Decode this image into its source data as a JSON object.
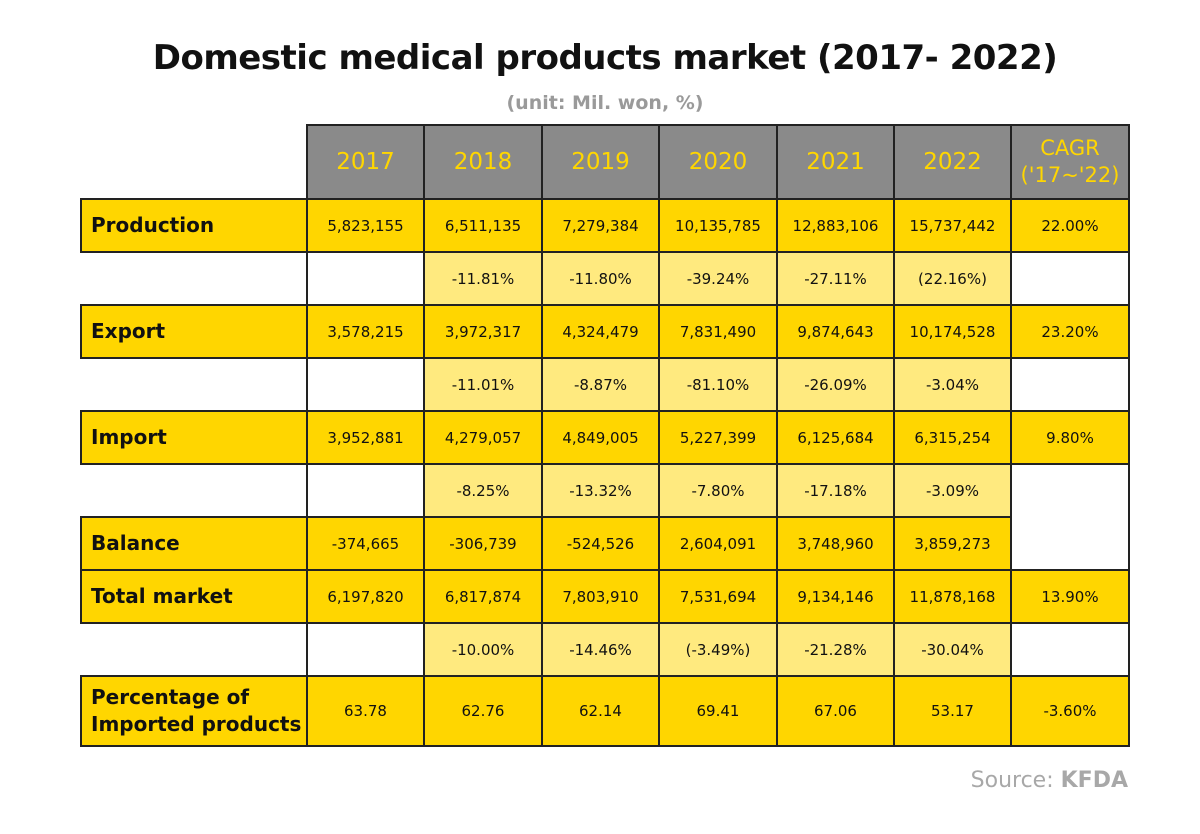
{
  "title": "Domestic medical products market  (2017- 2022)",
  "unit": "(unit: Mil. won, %)",
  "source": {
    "prefix": "Source: ",
    "name": "KFDA"
  },
  "colors": {
    "yellow": "#FFD600",
    "light_yellow": "#FFEA7F",
    "header_gray": "#8a8a8a"
  },
  "chart_data": {
    "type": "table",
    "columns": [
      "2017",
      "2018",
      "2019",
      "2020",
      "2021",
      "2022"
    ],
    "cagr_header": [
      "CAGR",
      "('17~'22)"
    ],
    "rows": [
      {
        "label": "Production",
        "values": [
          "5,823,155",
          "6,511,135",
          "7,279,384",
          "10,135,785",
          "12,883,106",
          "15,737,442"
        ],
        "cagr": "22.00%",
        "growth": [
          "",
          "-11.81%",
          "-11.80%",
          "-39.24%",
          "-27.11%",
          "(22.16%)"
        ]
      },
      {
        "label": "Export",
        "values": [
          "3,578,215",
          "3,972,317",
          "4,324,479",
          "7,831,490",
          "9,874,643",
          "10,174,528"
        ],
        "cagr": "23.20%",
        "growth": [
          "",
          "-11.01%",
          "-8.87%",
          "-81.10%",
          "-26.09%",
          "-3.04%"
        ]
      },
      {
        "label": "Import",
        "values": [
          "3,952,881",
          "4,279,057",
          "4,849,005",
          "5,227,399",
          "6,125,684",
          "6,315,254"
        ],
        "cagr": "9.80%",
        "growth": [
          "",
          "-8.25%",
          "-13.32%",
          "-7.80%",
          "-17.18%",
          "-3.09%"
        ]
      },
      {
        "label": "Balance",
        "values": [
          "-374,665",
          "-306,739",
          "-524,526",
          "2,604,091",
          "3,748,960",
          "3,859,273"
        ],
        "cagr": ""
      },
      {
        "label": "Total market",
        "values": [
          "6,197,820",
          "6,817,874",
          "7,803,910",
          "7,531,694",
          "9,134,146",
          "11,878,168"
        ],
        "cagr": "13.90%",
        "growth": [
          "",
          "-10.00%",
          "-14.46%",
          "(-3.49%)",
          "-21.28%",
          "-30.04%"
        ]
      },
      {
        "label": "Percentage of Imported products",
        "label_lines": [
          "Percentage of",
          "Imported products"
        ],
        "values": [
          "63.78",
          "62.76",
          "62.14",
          "69.41",
          "67.06",
          "53.17"
        ],
        "cagr": "-3.60%"
      }
    ]
  }
}
